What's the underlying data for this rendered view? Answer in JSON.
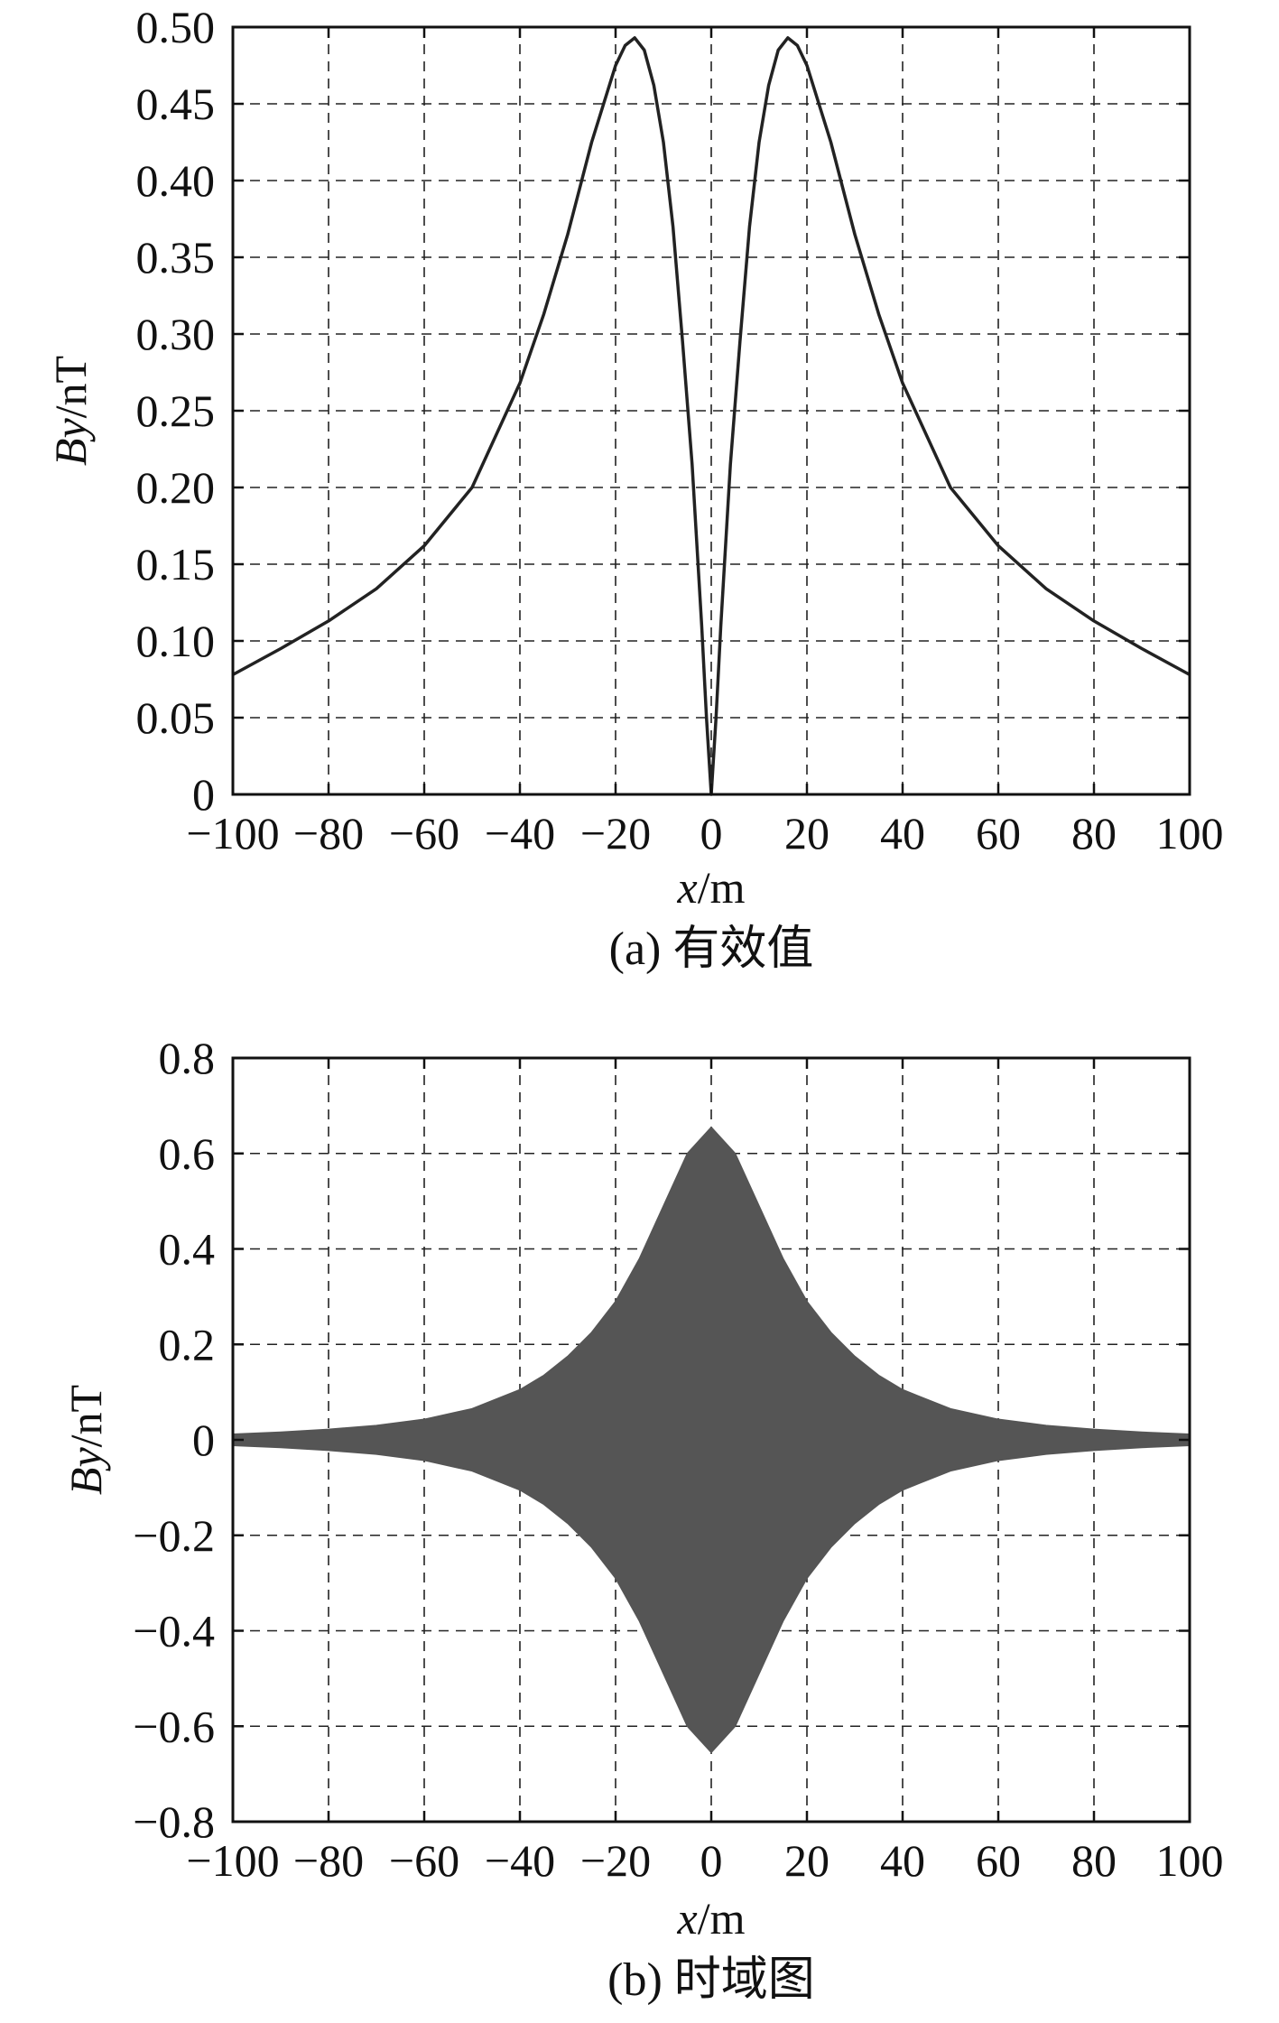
{
  "chart_data": [
    {
      "type": "line",
      "caption": "(a) 有效值",
      "xlabel_italic": "x",
      "xlabel_unit": "/m",
      "ylabel_italic": "By",
      "ylabel_unit": "/nT",
      "xlim": [
        -100,
        100
      ],
      "ylim": [
        0,
        0.5
      ],
      "xticks": [
        "−100",
        "−80",
        "−60",
        "−40",
        "−20",
        "0",
        "20",
        "40",
        "60",
        "80",
        "100"
      ],
      "yticks": [
        "0",
        "0.05",
        "0.10",
        "0.15",
        "0.20",
        "0.25",
        "0.30",
        "0.35",
        "0.40",
        "0.45",
        "0.50"
      ],
      "grid": true,
      "line_color": "#222222",
      "series": [
        {
          "x": [
            -100,
            -90,
            -80,
            -70,
            -60,
            -50,
            -40,
            -35,
            -30,
            -25,
            -20,
            -18,
            -16,
            -14,
            -12,
            -10,
            -8,
            -6,
            -4,
            -2,
            -1,
            0,
            1,
            2,
            4,
            6,
            8,
            10,
            12,
            14,
            16,
            18,
            20,
            25,
            30,
            35,
            40,
            50,
            60,
            70,
            80,
            90,
            100
          ],
          "values": [
            0.078,
            0.095,
            0.113,
            0.134,
            0.162,
            0.2,
            0.268,
            0.313,
            0.365,
            0.425,
            0.475,
            0.488,
            0.493,
            0.485,
            0.462,
            0.425,
            0.37,
            0.295,
            0.215,
            0.11,
            0.05,
            0.0,
            0.05,
            0.11,
            0.215,
            0.295,
            0.37,
            0.425,
            0.462,
            0.485,
            0.493,
            0.488,
            0.475,
            0.425,
            0.365,
            0.313,
            0.268,
            0.2,
            0.162,
            0.134,
            0.113,
            0.095,
            0.078
          ]
        }
      ]
    },
    {
      "type": "area",
      "caption": "(b) 时域图",
      "xlabel_italic": "x",
      "xlabel_unit": "/m",
      "ylabel_italic": "By",
      "ylabel_unit": "/nT",
      "xlim": [
        -100,
        100
      ],
      "ylim": [
        -0.8,
        0.8
      ],
      "xticks": [
        "−100",
        "−80",
        "−60",
        "−40",
        "−20",
        "0",
        "20",
        "40",
        "60",
        "80",
        "100"
      ],
      "yticks": [
        "−0.8",
        "−0.6",
        "−0.4",
        "−0.2",
        "0",
        "0.2",
        "0.4",
        "0.6",
        "0.8"
      ],
      "grid": true,
      "fill_color": "#555555",
      "envelope": {
        "x": [
          -100,
          -90,
          -80,
          -70,
          -60,
          -50,
          -40,
          -35,
          -30,
          -25,
          -20,
          -15,
          -10,
          -5,
          0,
          5,
          10,
          15,
          20,
          25,
          30,
          35,
          40,
          50,
          60,
          70,
          80,
          90,
          100
        ],
        "upper": [
          0.012,
          0.016,
          0.022,
          0.03,
          0.043,
          0.065,
          0.105,
          0.135,
          0.175,
          0.225,
          0.29,
          0.38,
          0.49,
          0.6,
          0.655,
          0.6,
          0.49,
          0.38,
          0.29,
          0.225,
          0.175,
          0.135,
          0.105,
          0.065,
          0.043,
          0.03,
          0.022,
          0.016,
          0.012
        ]
      }
    }
  ]
}
